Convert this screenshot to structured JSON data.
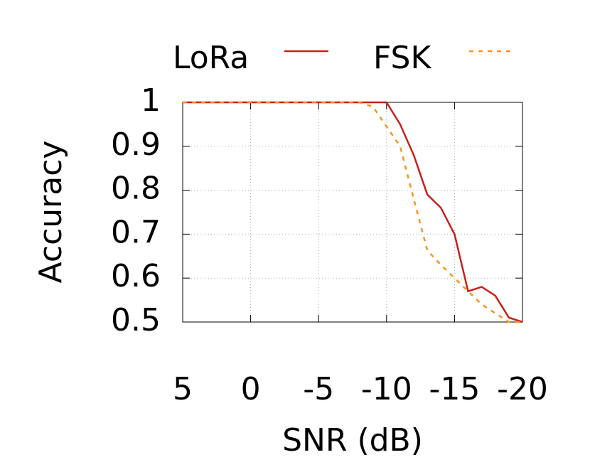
{
  "chart_data": {
    "type": "line",
    "x_label": "SNR (dB)",
    "y_label": "Accuracy",
    "x": [
      5,
      0,
      -5,
      -8,
      -9,
      -10,
      -11,
      -12,
      -13,
      -14,
      -15,
      -16,
      -17,
      -18,
      -19,
      -20
    ],
    "series": [
      {
        "name": "LoRa",
        "color": "#c8201a",
        "style": "solid",
        "values": [
          1,
          1,
          1,
          1,
          1,
          1,
          0.95,
          0.88,
          0.79,
          0.76,
          0.7,
          0.57,
          0.58,
          0.56,
          0.51,
          0.5
        ]
      },
      {
        "name": "FSK",
        "color": "#f7941d",
        "style": "dashed",
        "values": [
          1,
          1,
          1,
          1,
          0.99,
          0.945,
          0.9,
          0.78,
          0.663,
          0.63,
          0.6,
          0.57,
          0.54,
          0.52,
          0.5,
          0.5
        ]
      }
    ],
    "xlim": [
      5,
      -20
    ],
    "xticks": [
      5,
      0,
      -5,
      -10,
      -15,
      -20
    ],
    "ylim": [
      0.5,
      1
    ],
    "yticks": [
      0.5,
      0.6,
      0.7,
      0.8,
      0.9,
      1
    ],
    "grid": true,
    "legend": "top"
  }
}
